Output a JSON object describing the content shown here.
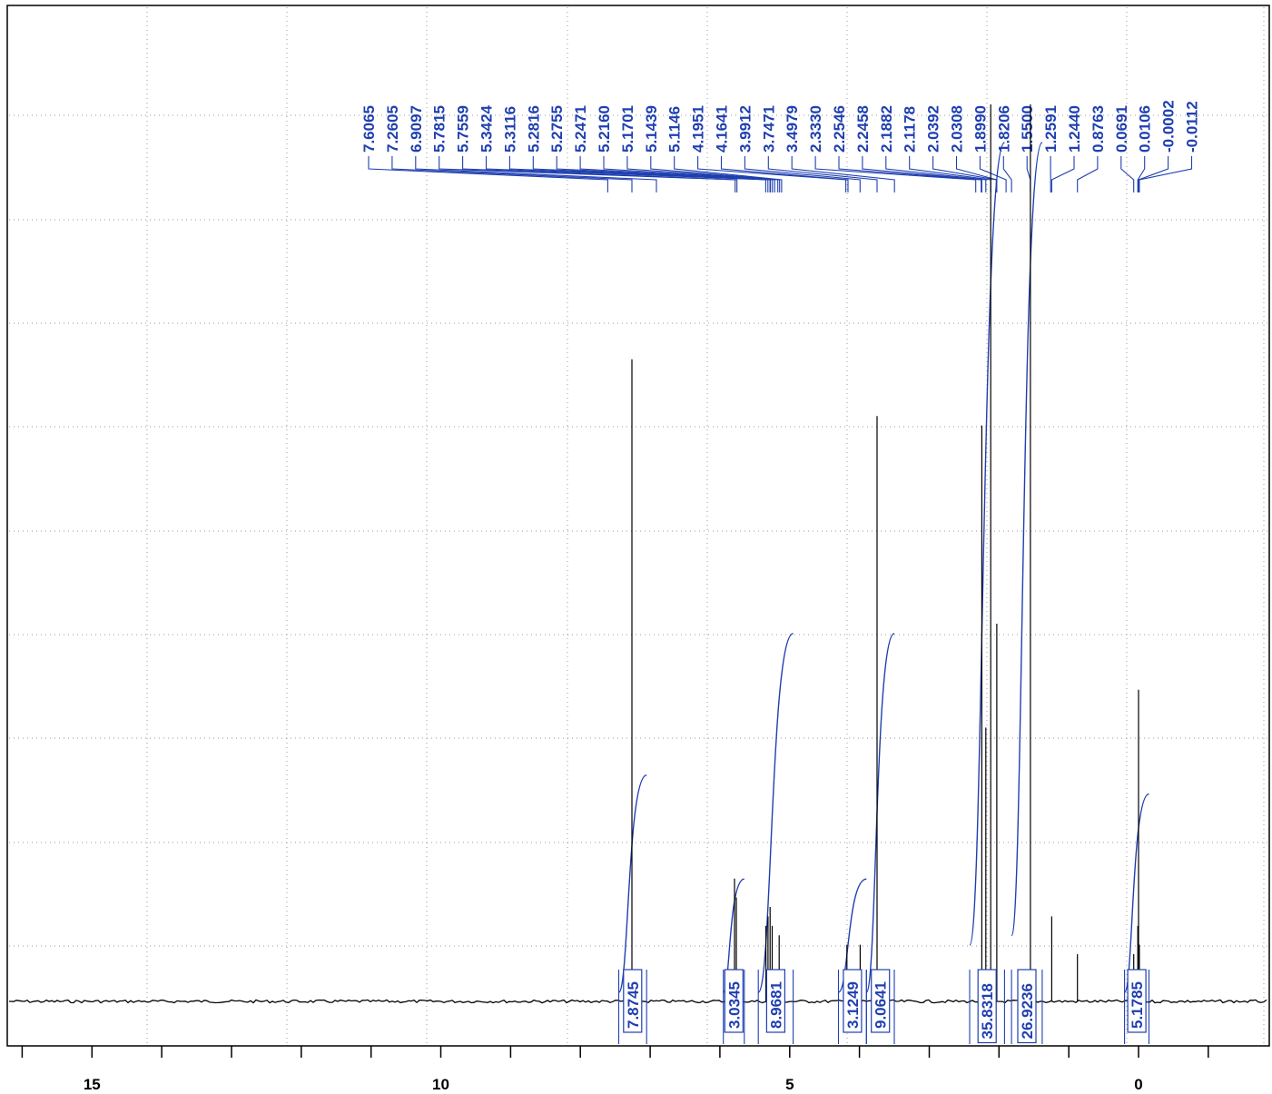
{
  "chart_data": {
    "type": "line",
    "title": "",
    "xlabel": "",
    "ylabel": "",
    "x_range": [
      16.0,
      -2.0
    ],
    "x_reversed": true,
    "grid": true,
    "x_major_ticks": [
      15,
      10,
      5,
      0
    ],
    "x_tick_labels": [
      "15",
      "10",
      "5",
      "0"
    ],
    "x_minor_step": 1,
    "peaks": [
      {
        "ppm": 7.2605,
        "height": 0.68
      },
      {
        "ppm": 5.79,
        "height": 0.13
      },
      {
        "ppm": 5.765,
        "height": 0.11
      },
      {
        "ppm": 5.34,
        "height": 0.08
      },
      {
        "ppm": 5.31,
        "height": 0.09
      },
      {
        "ppm": 5.28,
        "height": 0.1
      },
      {
        "ppm": 5.25,
        "height": 0.08
      },
      {
        "ppm": 5.15,
        "height": 0.07
      },
      {
        "ppm": 4.18,
        "height": 0.06
      },
      {
        "ppm": 3.99,
        "height": 0.06
      },
      {
        "ppm": 3.7471,
        "height": 0.62
      },
      {
        "ppm": 2.2458,
        "height": 0.61
      },
      {
        "ppm": 2.1882,
        "height": 0.29
      },
      {
        "ppm": 2.1178,
        "height": 0.95
      },
      {
        "ppm": 2.0308,
        "height": 0.4
      },
      {
        "ppm": 1.55,
        "height": 0.95
      },
      {
        "ppm": 1.244,
        "height": 0.09
      },
      {
        "ppm": 0.8763,
        "height": 0.05
      },
      {
        "ppm": 0.0691,
        "height": 0.05
      },
      {
        "ppm": 0.0106,
        "height": 0.08
      },
      {
        "ppm": -0.0002,
        "height": 0.33
      },
      {
        "ppm": -0.0112,
        "height": 0.06
      }
    ],
    "shift_labels": [
      "7.6065",
      "7.2605",
      "6.9097",
      "5.7815",
      "5.7559",
      "5.3424",
      "5.3116",
      "5.2816",
      "5.2755",
      "5.2471",
      "5.2160",
      "5.1701",
      "5.1439",
      "5.1146",
      "4.1951",
      "4.1641",
      "3.9912",
      "3.7471",
      "3.4979",
      "2.3330",
      "2.2546",
      "2.2458",
      "2.1882",
      "2.1178",
      "2.0392",
      "2.0308",
      "1.8990",
      "1.8206",
      "1.5500",
      "1.2591",
      "1.2440",
      "0.8763",
      "0.0691",
      "0.0106",
      "-0.0002",
      "-0.0112"
    ],
    "integrals": [
      {
        "label": "7.8745",
        "from": 7.45,
        "to": 7.05,
        "y_start": 0.0,
        "y_end": 0.23
      },
      {
        "label": "3.0345",
        "from": 5.95,
        "to": 5.65,
        "y_start": 0.0,
        "y_end": 0.12
      },
      {
        "label": "8.9681",
        "from": 5.45,
        "to": 4.95,
        "y_start": 0.0,
        "y_end": 0.38
      },
      {
        "label": "3.1249",
        "from": 4.3,
        "to": 3.9,
        "y_start": 0.0,
        "y_end": 0.12
      },
      {
        "label": "9.0641",
        "from": 3.9,
        "to": 3.5,
        "y_start": 0.0,
        "y_end": 0.38
      },
      {
        "label": "35.8318",
        "from": 2.42,
        "to": 1.92,
        "y_start": 0.05,
        "y_end": 0.9
      },
      {
        "label": "26.9236",
        "from": 1.82,
        "to": 1.38,
        "y_start": 0.06,
        "y_end": 0.9
      },
      {
        "label": "5.1785",
        "from": 0.2,
        "to": -0.15,
        "y_start": 0.0,
        "y_end": 0.21
      }
    ]
  }
}
